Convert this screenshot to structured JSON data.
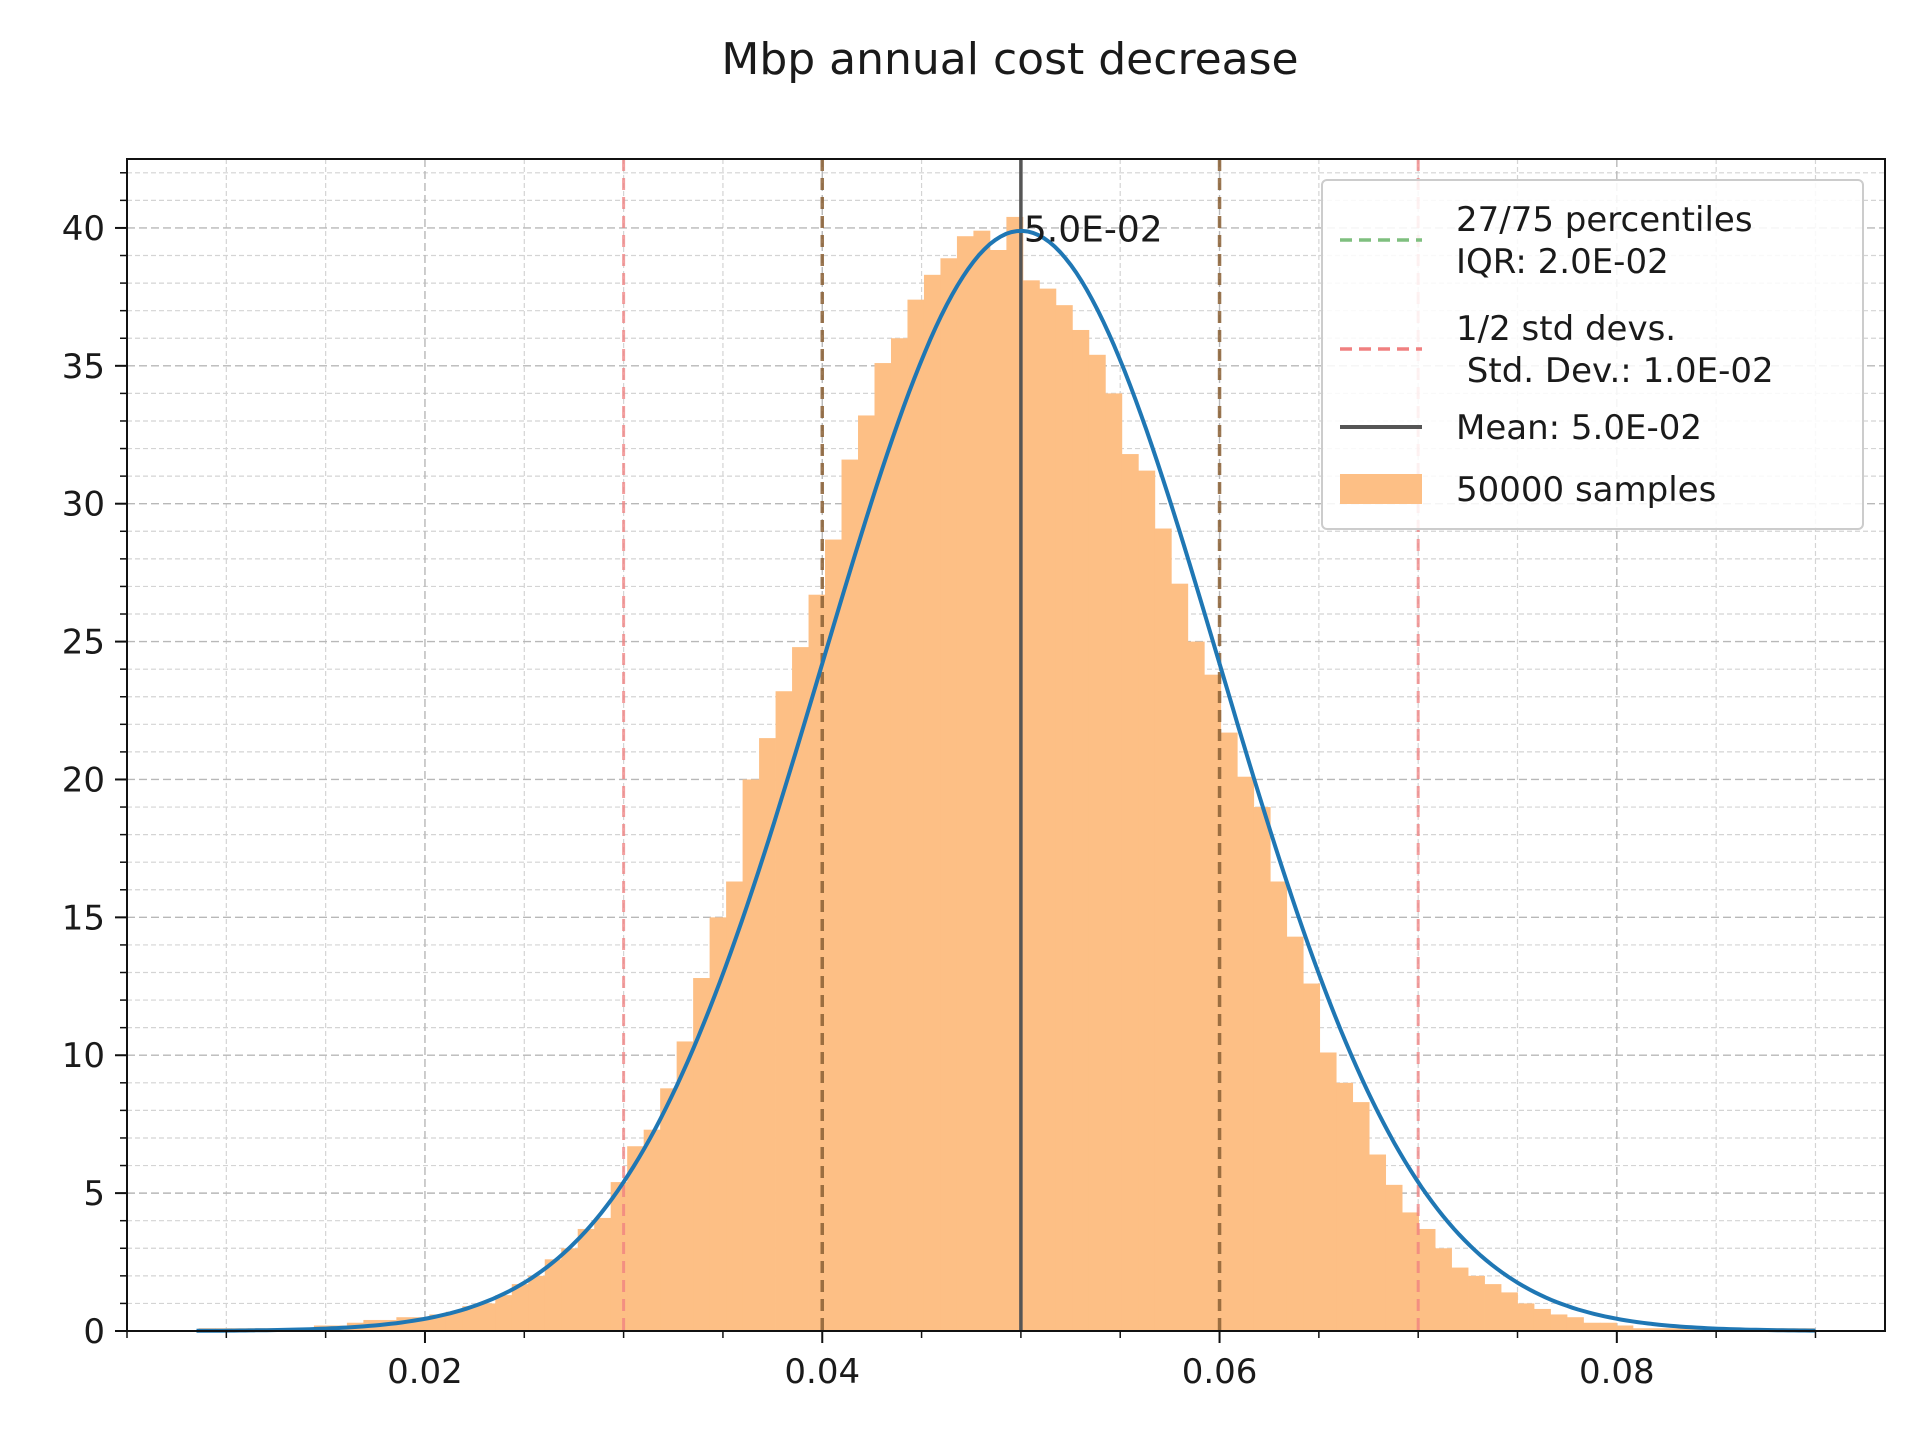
{
  "chart_data": {
    "type": "bar",
    "title": "Mbp annual cost decrease",
    "xlabel": "",
    "ylabel": "",
    "xlim": [
      0.005,
      0.0935
    ],
    "ylim": [
      0,
      42.5
    ],
    "x_ticks": [
      "0.02",
      "0.04",
      "0.06",
      "0.08"
    ],
    "y_ticks": [
      "0",
      "5",
      "10",
      "15",
      "20",
      "25",
      "30",
      "35",
      "40"
    ],
    "grid": true,
    "legend_position": "top-right",
    "histogram": {
      "label": "50000 samples",
      "color": "#fdbf85",
      "bin_start": 0.0086,
      "bin_width": 0.00083,
      "values": [
        0.1,
        0.1,
        0.1,
        0.1,
        0.1,
        0.1,
        0.1,
        0.2,
        0.2,
        0.3,
        0.4,
        0.4,
        0.5,
        0.5,
        0.6,
        0.7,
        0.9,
        1.0,
        1.3,
        1.7,
        2.0,
        2.6,
        3.0,
        3.7,
        4.1,
        5.4,
        6.7,
        7.3,
        8.8,
        10.5,
        12.8,
        15.0,
        16.3,
        20.0,
        21.5,
        23.2,
        24.8,
        26.7,
        28.7,
        31.6,
        33.2,
        35.1,
        36.0,
        37.4,
        38.3,
        38.9,
        39.7,
        39.9,
        39.2,
        40.4,
        38.1,
        37.8,
        37.2,
        36.3,
        35.4,
        34.0,
        31.8,
        31.2,
        29.1,
        27.1,
        25.0,
        23.8,
        21.7,
        20.1,
        19.0,
        16.3,
        14.3,
        12.6,
        10.1,
        9.0,
        8.3,
        6.4,
        5.3,
        4.3,
        3.7,
        3.0,
        2.3,
        2.0,
        1.7,
        1.4,
        1.0,
        0.8,
        0.6,
        0.5,
        0.3,
        0.3,
        0.2,
        0.1,
        0.1,
        0.1,
        0.1,
        0.1,
        0.1,
        0.1,
        0.1,
        0.1,
        0.1,
        0.1
      ]
    },
    "fit_curve": {
      "mean": 0.05,
      "std": 0.01,
      "x_range": [
        0.0085,
        0.09
      ],
      "color": "#1f77b4"
    },
    "percentile_lines": {
      "label": "27/75 percentiles\nIQR: 2.0E-02",
      "x": [
        0.04,
        0.06
      ],
      "color": "#7fbf7f"
    },
    "std_lines": {
      "label": "1/2 std devs.\n Std. Dev.: 1.0E-02",
      "x": [
        0.03,
        0.07
      ],
      "color": "#f08080"
    },
    "mean_line": {
      "label": "Mean: 5.0E-02",
      "x": 0.05,
      "color": "#555555"
    },
    "mean_annotation": "5.0E-02"
  }
}
